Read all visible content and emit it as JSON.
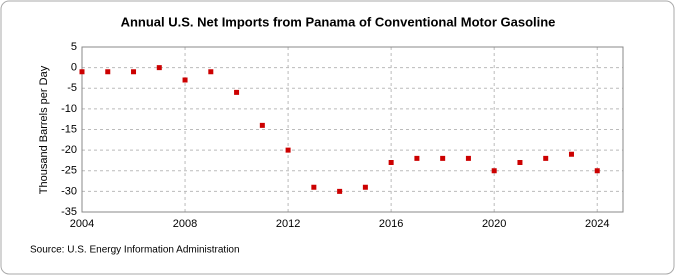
{
  "chart_data": {
    "type": "scatter",
    "title": "Annual U.S. Net Imports from Panama of Conventional Motor Gasoline",
    "y_label": "Thousand Barrels per Day",
    "source": "Source: U.S. Energy Information Administration",
    "x": [
      2004,
      2005,
      2006,
      2007,
      2008,
      2009,
      2010,
      2011,
      2012,
      2013,
      2014,
      2015,
      2016,
      2017,
      2018,
      2019,
      2020,
      2021,
      2022,
      2023,
      2024
    ],
    "values": [
      -1,
      -1,
      -1,
      0,
      -3,
      -1,
      -6,
      -14,
      -20,
      -29,
      -30,
      -29,
      -23,
      -22,
      -22,
      -22,
      -25,
      -23,
      -22,
      -21,
      -25
    ],
    "color": "#cc0000",
    "xlim": [
      2004,
      2025
    ],
    "xticks": [
      2004,
      2008,
      2012,
      2016,
      2020,
      2024
    ],
    "ylim": [
      -35,
      5
    ],
    "yticks": [
      -35,
      -30,
      -25,
      -20,
      -15,
      -10,
      -5,
      0,
      5
    ],
    "grid": true
  }
}
